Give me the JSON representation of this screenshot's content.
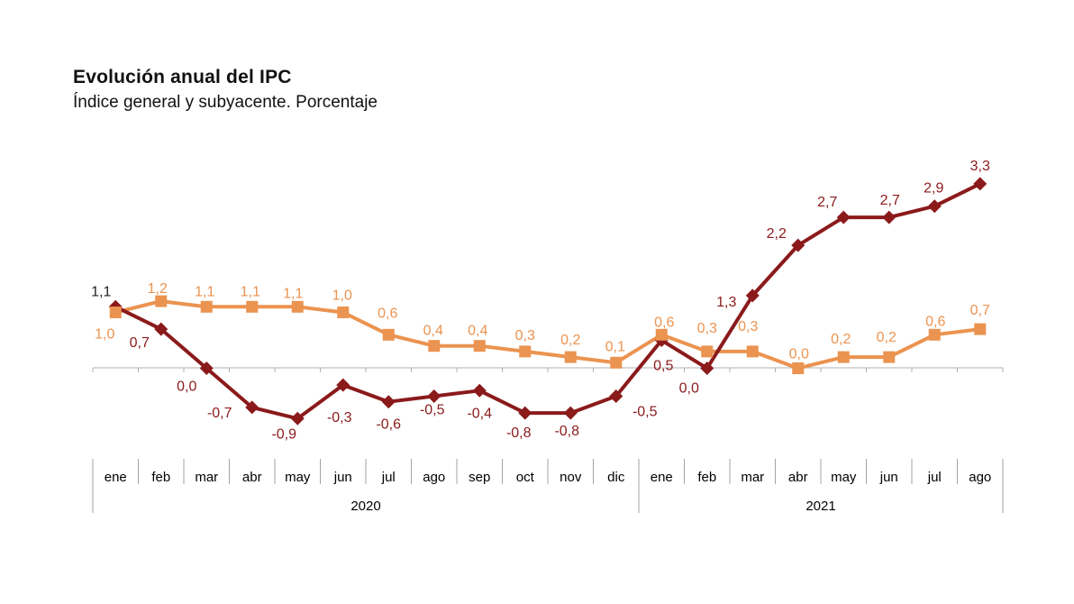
{
  "header": {
    "title": "Evolución anual del IPC",
    "subtitle": "Índice general y subyacente. Porcentaje"
  },
  "chart_data": {
    "type": "line",
    "title": "Evolución anual del IPC",
    "subtitle": "Índice general y subyacente. Porcentaje",
    "unit": "porcentaje",
    "grid": false,
    "legend": "none",
    "ylim": [
      -1.5,
      3.9
    ],
    "categories": [
      "ene",
      "feb",
      "mar",
      "abr",
      "may",
      "jun",
      "jul",
      "ago",
      "sep",
      "oct",
      "nov",
      "dic",
      "ene",
      "feb",
      "mar",
      "abr",
      "may",
      "jun",
      "jul",
      "ago"
    ],
    "year_groups": [
      {
        "label": "2020",
        "start": 0,
        "count": 12
      },
      {
        "label": "2021",
        "start": 12,
        "count": 8
      }
    ],
    "series": [
      {
        "name": "Indice general",
        "color": "#8B1A1B",
        "marker": "diamond",
        "values": [
          1.1,
          0.7,
          0.0,
          -0.7,
          -0.9,
          -0.3,
          -0.6,
          -0.5,
          -0.4,
          -0.8,
          -0.8,
          -0.5,
          0.5,
          0.0,
          1.3,
          2.2,
          2.7,
          2.7,
          2.9,
          3.3
        ],
        "labels": [
          "1,1",
          "0,7",
          "0,0",
          "-0,7",
          "-0,9",
          "-0,3",
          "-0,6",
          "-0,5",
          "-0,4",
          "-0,8",
          "-0,8",
          "-0,5",
          "0,5",
          "0,0",
          "1,3",
          "2,2",
          "2,7",
          "2,7",
          "2,9",
          "3,3"
        ],
        "label_offsets": [
          [
            -16,
            -17
          ],
          [
            -24,
            15
          ],
          [
            -22,
            20
          ],
          [
            -36,
            6
          ],
          [
            -15,
            17
          ],
          [
            -4,
            36
          ],
          [
            0,
            25
          ],
          [
            -2,
            15
          ],
          [
            0,
            25
          ],
          [
            -7,
            22
          ],
          [
            -4,
            20
          ],
          [
            32,
            17
          ],
          [
            2,
            28
          ],
          [
            -20,
            22
          ],
          [
            -29,
            7
          ],
          [
            -24,
            -13
          ],
          [
            -18,
            -17
          ],
          [
            1,
            -19
          ],
          [
            -1,
            -20
          ],
          [
            0,
            -20
          ]
        ],
        "label_color_overrides": {
          "0": "#1F1F1F"
        }
      },
      {
        "name": "Indice subyacente",
        "color": "#EB9350",
        "marker": "square",
        "values": [
          1.0,
          1.2,
          1.1,
          1.1,
          1.1,
          1.0,
          0.6,
          0.4,
          0.4,
          0.3,
          0.2,
          0.1,
          0.6,
          0.3,
          0.3,
          0.0,
          0.2,
          0.2,
          0.6,
          0.7
        ],
        "labels": [
          "1,0",
          "1,2",
          "1,1",
          "1,1",
          "1,1",
          "1,0",
          "0,6",
          "0,4",
          "0,4",
          "0,3",
          "0,2",
          "0,1",
          "0,6",
          "0,3",
          "0,3",
          "0,0",
          "0,2",
          "0,2",
          "0,6",
          "0,7"
        ],
        "label_offsets": [
          [
            -12,
            24
          ],
          [
            -4,
            -14
          ],
          [
            -2,
            -17
          ],
          [
            -2,
            -17
          ],
          [
            -5,
            -15
          ],
          [
            -1,
            -19
          ],
          [
            -1,
            -24
          ],
          [
            -1,
            -17
          ],
          [
            -2,
            -17
          ],
          [
            0,
            -18
          ],
          [
            0,
            -19
          ],
          [
            -1,
            -18
          ],
          [
            3,
            -14
          ],
          [
            0,
            -26
          ],
          [
            -5,
            -28
          ],
          [
            1,
            -16
          ],
          [
            -3,
            -20
          ],
          [
            -3,
            -22
          ],
          [
            1,
            -15
          ],
          [
            0,
            -21
          ]
        ]
      }
    ],
    "axis_colors": {
      "zero_line": "#B0B0B0",
      "ticks": "#A3A3A3",
      "text": "#000000"
    }
  }
}
